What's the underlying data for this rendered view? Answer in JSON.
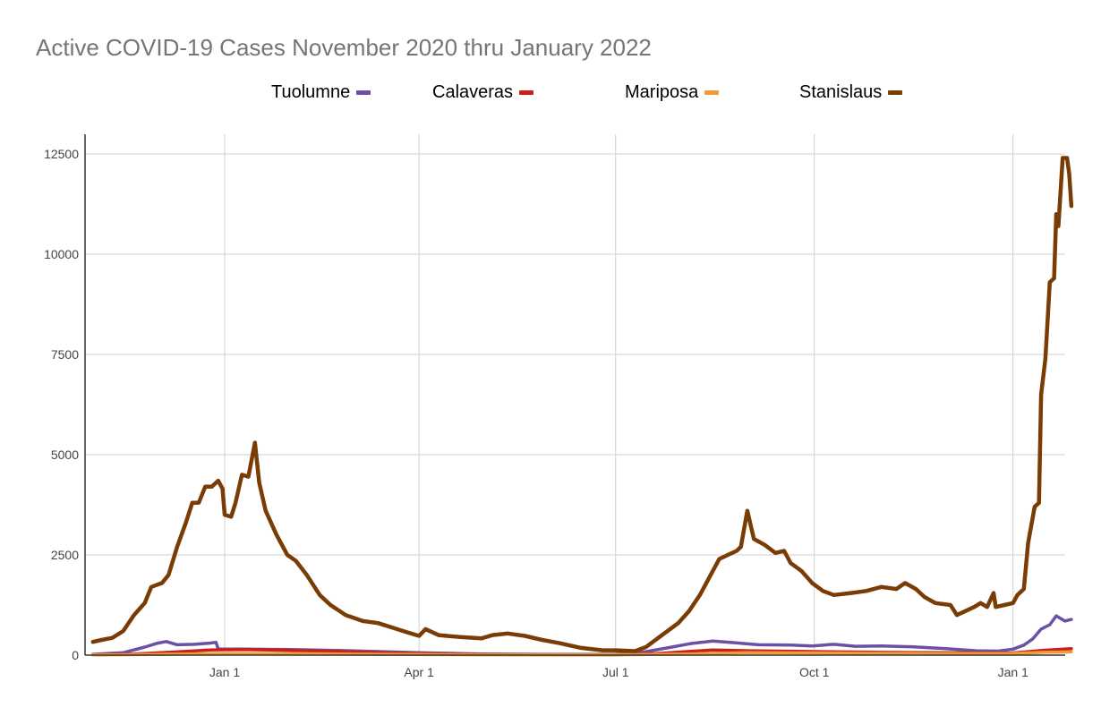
{
  "chart_data": {
    "type": "line",
    "title": "Active COVID-19 Cases November 2020 thru January 2022",
    "xlabel": "",
    "ylabel": "",
    "x_range": [
      "2020-11-01",
      "2022-01-28"
    ],
    "ylim": [
      0,
      12500
    ],
    "y_ticks": [
      0,
      2500,
      5000,
      7500,
      10000,
      12500
    ],
    "x_ticks": [
      {
        "date": "2021-01-01",
        "label": "Jan 1"
      },
      {
        "date": "2021-04-01",
        "label": "Apr 1"
      },
      {
        "date": "2021-07-01",
        "label": "Jul 1"
      },
      {
        "date": "2021-10-01",
        "label": "Oct 1"
      },
      {
        "date": "2022-01-01",
        "label": "Jan 1"
      }
    ],
    "grid": true,
    "legend_position": "top",
    "series": [
      {
        "name": "Tuolumne",
        "color": "#6a51a3",
        "points": [
          [
            "2020-11-01",
            20
          ],
          [
            "2020-11-15",
            60
          ],
          [
            "2020-11-25",
            200
          ],
          [
            "2020-12-01",
            300
          ],
          [
            "2020-12-05",
            340
          ],
          [
            "2020-12-10",
            260
          ],
          [
            "2020-12-18",
            270
          ],
          [
            "2020-12-25",
            300
          ],
          [
            "2020-12-28",
            320
          ],
          [
            "2020-12-29",
            150
          ],
          [
            "2021-01-10",
            150
          ],
          [
            "2021-01-31",
            140
          ],
          [
            "2021-02-28",
            110
          ],
          [
            "2021-03-31",
            60
          ],
          [
            "2021-04-30",
            30
          ],
          [
            "2021-05-31",
            20
          ],
          [
            "2021-06-30",
            20
          ],
          [
            "2021-07-10",
            40
          ],
          [
            "2021-07-25",
            180
          ],
          [
            "2021-08-05",
            290
          ],
          [
            "2021-08-15",
            350
          ],
          [
            "2021-08-25",
            310
          ],
          [
            "2021-09-05",
            260
          ],
          [
            "2021-09-20",
            250
          ],
          [
            "2021-09-30",
            230
          ],
          [
            "2021-10-10",
            270
          ],
          [
            "2021-10-20",
            220
          ],
          [
            "2021-11-01",
            230
          ],
          [
            "2021-11-15",
            210
          ],
          [
            "2021-12-01",
            160
          ],
          [
            "2021-12-15",
            110
          ],
          [
            "2021-12-25",
            100
          ],
          [
            "2022-01-01",
            150
          ],
          [
            "2022-01-06",
            250
          ],
          [
            "2022-01-10",
            400
          ],
          [
            "2022-01-14",
            650
          ],
          [
            "2022-01-18",
            760
          ],
          [
            "2022-01-21",
            980
          ],
          [
            "2022-01-25",
            850
          ],
          [
            "2022-01-28",
            890
          ]
        ]
      },
      {
        "name": "Calaveras",
        "color": "#cc1f1a",
        "points": [
          [
            "2020-11-01",
            10
          ],
          [
            "2020-11-20",
            30
          ],
          [
            "2020-12-10",
            80
          ],
          [
            "2020-12-25",
            130
          ],
          [
            "2021-01-10",
            140
          ],
          [
            "2021-01-31",
            120
          ],
          [
            "2021-02-28",
            80
          ],
          [
            "2021-03-31",
            40
          ],
          [
            "2021-04-30",
            20
          ],
          [
            "2021-05-31",
            10
          ],
          [
            "2021-06-30",
            10
          ],
          [
            "2021-07-20",
            40
          ],
          [
            "2021-08-15",
            130
          ],
          [
            "2021-09-01",
            110
          ],
          [
            "2021-09-30",
            90
          ],
          [
            "2021-10-31",
            70
          ],
          [
            "2021-11-30",
            60
          ],
          [
            "2021-12-31",
            50
          ],
          [
            "2022-01-15",
            120
          ],
          [
            "2022-01-28",
            160
          ]
        ]
      },
      {
        "name": "Mariposa",
        "color": "#f09a38",
        "points": [
          [
            "2020-11-01",
            5
          ],
          [
            "2020-12-01",
            20
          ],
          [
            "2020-12-31",
            40
          ],
          [
            "2021-01-31",
            40
          ],
          [
            "2021-02-28",
            25
          ],
          [
            "2021-03-31",
            15
          ],
          [
            "2021-04-30",
            10
          ],
          [
            "2021-05-31",
            8
          ],
          [
            "2021-06-30",
            8
          ],
          [
            "2021-07-31",
            25
          ],
          [
            "2021-08-31",
            60
          ],
          [
            "2021-09-30",
            55
          ],
          [
            "2021-10-31",
            45
          ],
          [
            "2021-11-30",
            40
          ],
          [
            "2021-12-31",
            40
          ],
          [
            "2022-01-15",
            70
          ],
          [
            "2022-01-28",
            80
          ]
        ]
      },
      {
        "name": "Stanislaus",
        "color": "#7a3c05",
        "points": [
          [
            "2020-11-01",
            330
          ],
          [
            "2020-11-05",
            380
          ],
          [
            "2020-11-10",
            430
          ],
          [
            "2020-11-15",
            600
          ],
          [
            "2020-11-20",
            1000
          ],
          [
            "2020-11-25",
            1300
          ],
          [
            "2020-11-28",
            1700
          ],
          [
            "2020-12-03",
            1800
          ],
          [
            "2020-12-06",
            2000
          ],
          [
            "2020-12-10",
            2700
          ],
          [
            "2020-12-14",
            3300
          ],
          [
            "2020-12-17",
            3800
          ],
          [
            "2020-12-20",
            3800
          ],
          [
            "2020-12-23",
            4200
          ],
          [
            "2020-12-26",
            4200
          ],
          [
            "2020-12-29",
            4350
          ],
          [
            "2020-12-31",
            4150
          ],
          [
            "2021-01-01",
            3500
          ],
          [
            "2021-01-04",
            3450
          ],
          [
            "2021-01-06",
            3800
          ],
          [
            "2021-01-09",
            4500
          ],
          [
            "2021-01-12",
            4450
          ],
          [
            "2021-01-15",
            5300
          ],
          [
            "2021-01-17",
            4300
          ],
          [
            "2021-01-20",
            3600
          ],
          [
            "2021-01-25",
            3000
          ],
          [
            "2021-01-30",
            2500
          ],
          [
            "2021-02-03",
            2350
          ],
          [
            "2021-02-08",
            2000
          ],
          [
            "2021-02-14",
            1500
          ],
          [
            "2021-02-19",
            1250
          ],
          [
            "2021-02-26",
            1000
          ],
          [
            "2021-03-06",
            850
          ],
          [
            "2021-03-13",
            800
          ],
          [
            "2021-03-20",
            680
          ],
          [
            "2021-03-27",
            560
          ],
          [
            "2021-04-01",
            480
          ],
          [
            "2021-04-04",
            650
          ],
          [
            "2021-04-10",
            500
          ],
          [
            "2021-04-20",
            450
          ],
          [
            "2021-04-30",
            420
          ],
          [
            "2021-05-05",
            500
          ],
          [
            "2021-05-12",
            540
          ],
          [
            "2021-05-20",
            480
          ],
          [
            "2021-05-28",
            380
          ],
          [
            "2021-06-05",
            300
          ],
          [
            "2021-06-15",
            180
          ],
          [
            "2021-06-25",
            120
          ],
          [
            "2021-07-01",
            120
          ],
          [
            "2021-07-10",
            100
          ],
          [
            "2021-07-15",
            200
          ],
          [
            "2021-07-20",
            400
          ],
          [
            "2021-07-25",
            600
          ],
          [
            "2021-07-30",
            800
          ],
          [
            "2021-08-04",
            1100
          ],
          [
            "2021-08-09",
            1500
          ],
          [
            "2021-08-14",
            2000
          ],
          [
            "2021-08-18",
            2400
          ],
          [
            "2021-08-22",
            2500
          ],
          [
            "2021-08-26",
            2600
          ],
          [
            "2021-08-28",
            2700
          ],
          [
            "2021-08-31",
            3600
          ],
          [
            "2021-09-03",
            2900
          ],
          [
            "2021-09-08",
            2750
          ],
          [
            "2021-09-13",
            2550
          ],
          [
            "2021-09-17",
            2600
          ],
          [
            "2021-09-20",
            2300
          ],
          [
            "2021-09-25",
            2100
          ],
          [
            "2021-09-30",
            1800
          ],
          [
            "2021-10-05",
            1600
          ],
          [
            "2021-10-10",
            1500
          ],
          [
            "2021-10-18",
            1550
          ],
          [
            "2021-10-25",
            1600
          ],
          [
            "2021-11-01",
            1700
          ],
          [
            "2021-11-08",
            1650
          ],
          [
            "2021-11-12",
            1800
          ],
          [
            "2021-11-17",
            1650
          ],
          [
            "2021-11-21",
            1450
          ],
          [
            "2021-11-26",
            1300
          ],
          [
            "2021-12-03",
            1250
          ],
          [
            "2021-12-06",
            1000
          ],
          [
            "2021-12-10",
            1100
          ],
          [
            "2021-12-14",
            1200
          ],
          [
            "2021-12-17",
            1300
          ],
          [
            "2021-12-20",
            1200
          ],
          [
            "2021-12-23",
            1550
          ],
          [
            "2021-12-24",
            1200
          ],
          [
            "2021-12-28",
            1250
          ],
          [
            "2022-01-01",
            1300
          ],
          [
            "2022-01-03",
            1500
          ],
          [
            "2022-01-06",
            1650
          ],
          [
            "2022-01-08",
            2800
          ],
          [
            "2022-01-11",
            3700
          ],
          [
            "2022-01-13",
            3800
          ],
          [
            "2022-01-14",
            6500
          ],
          [
            "2022-01-16",
            7400
          ],
          [
            "2022-01-18",
            9300
          ],
          [
            "2022-01-20",
            9400
          ],
          [
            "2022-01-21",
            11000
          ],
          [
            "2022-01-22",
            10700
          ],
          [
            "2022-01-24",
            12400
          ],
          [
            "2022-01-26",
            12400
          ],
          [
            "2022-01-27",
            12000
          ],
          [
            "2022-01-28",
            11200
          ]
        ]
      }
    ]
  }
}
